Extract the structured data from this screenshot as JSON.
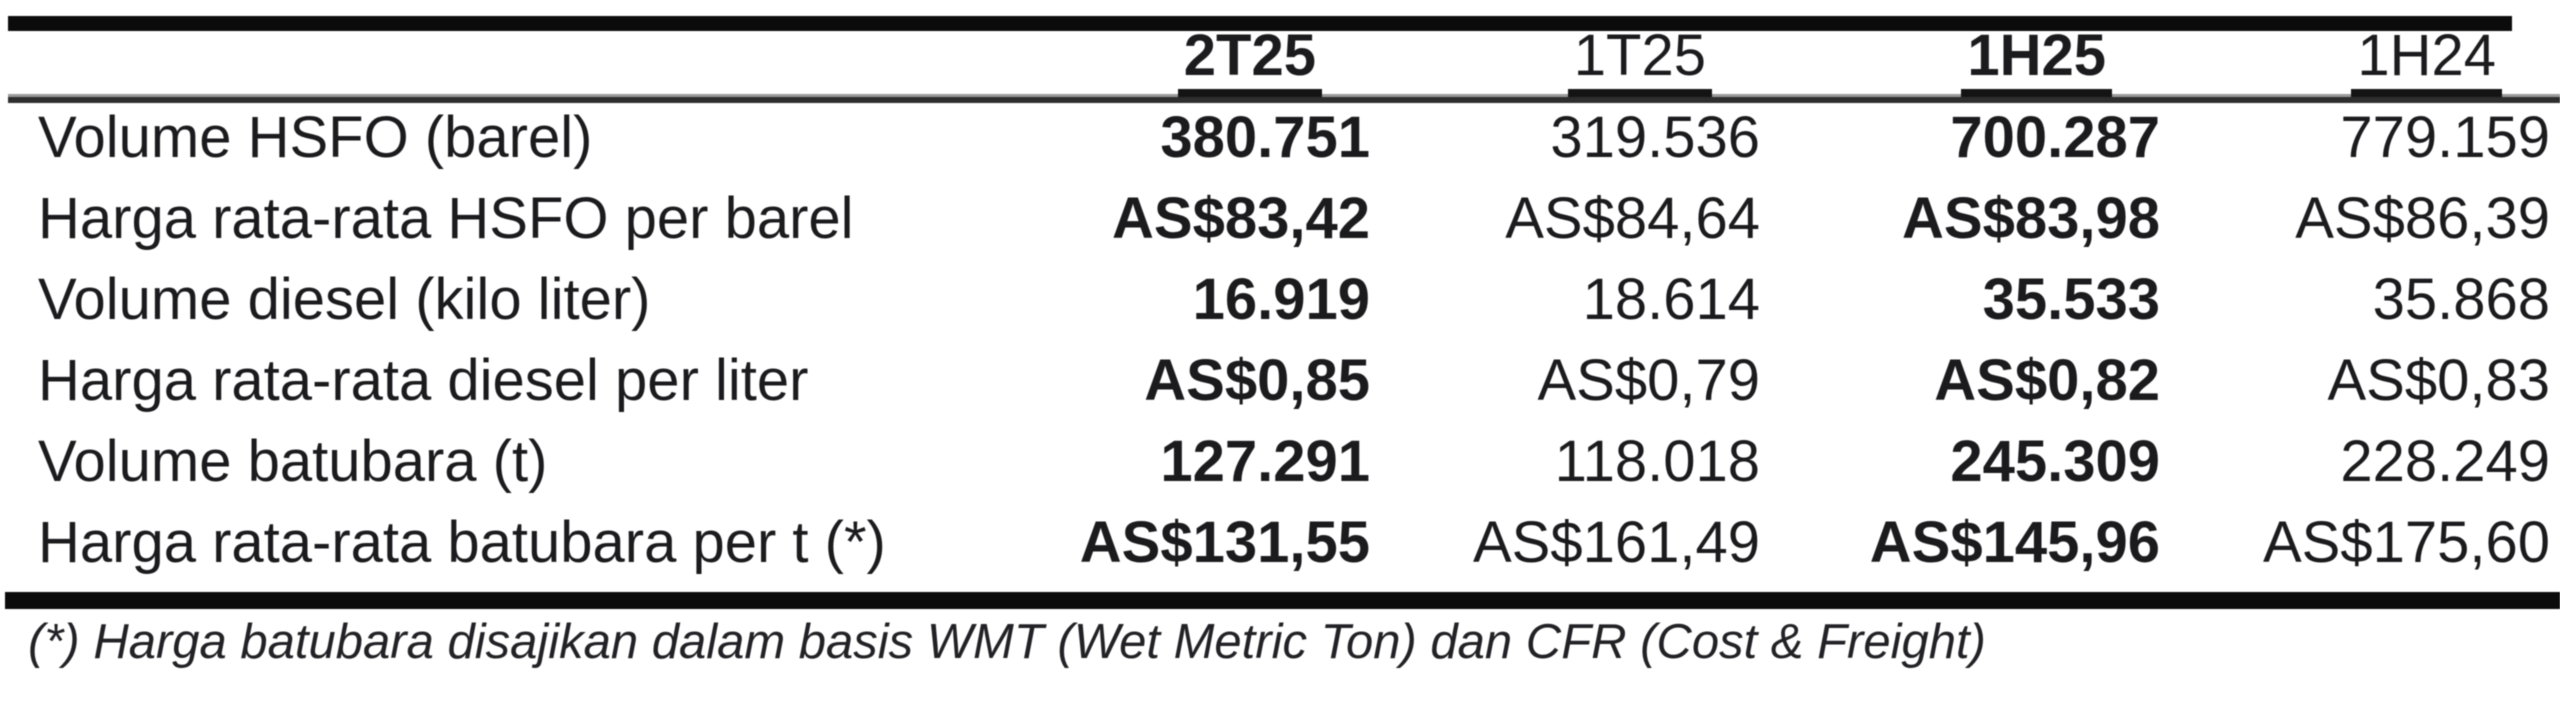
{
  "table": {
    "columns": [
      {
        "label": "2T25",
        "bold": true
      },
      {
        "label": "1T25",
        "bold": false
      },
      {
        "label": "1H25",
        "bold": true
      },
      {
        "label": "1H24",
        "bold": false
      }
    ],
    "rows": [
      {
        "label": "Volume HSFO (barel)",
        "values": [
          "380.751",
          "319.536",
          "700.287",
          "779.159"
        ]
      },
      {
        "label": "Harga rata-rata HSFO per barel",
        "values": [
          "AS$83,42",
          "AS$84,64",
          "AS$83,98",
          "AS$86,39"
        ]
      },
      {
        "label": "Volume diesel (kilo liter)",
        "values": [
          "16.919",
          "18.614",
          "35.533",
          "35.868"
        ]
      },
      {
        "label": "Harga rata-rata diesel per liter",
        "values": [
          "AS$0,85",
          "AS$0,79",
          "AS$0,82",
          "AS$0,83"
        ]
      },
      {
        "label": "Volume batubara (t)",
        "values": [
          "127.291",
          "118.018",
          "245.309",
          "228.249"
        ]
      },
      {
        "label": "Harga rata-rata batubara per t (*)",
        "values": [
          "AS$131,55",
          "AS$161,49",
          "AS$145,96",
          "AS$175,60"
        ]
      }
    ],
    "footnote": "(*) Harga batubara disajikan dalam basis WMT (Wet Metric Ton) dan CFR (Cost & Freight)"
  },
  "colors": {
    "text": "#1b1b1e",
    "rule": "#0b0b0b",
    "background": "#ffffff"
  }
}
